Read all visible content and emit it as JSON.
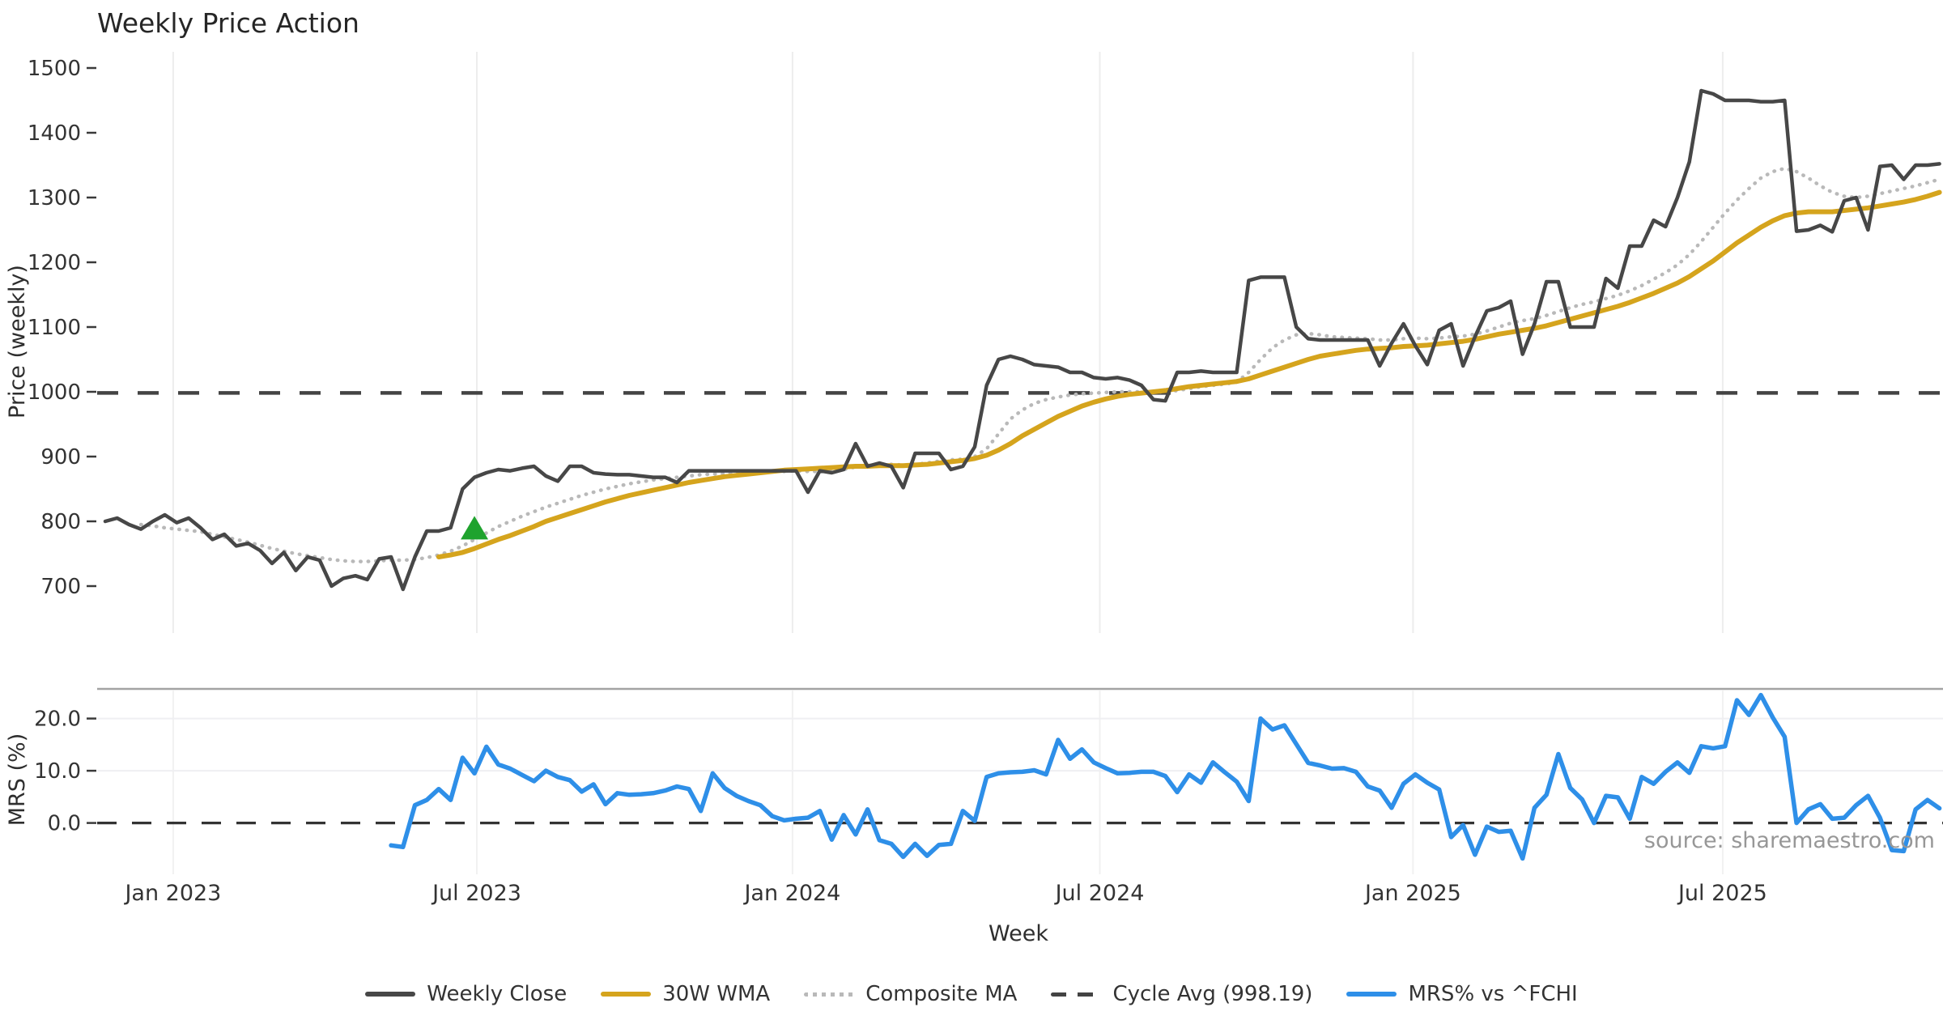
{
  "title": "Weekly Price Action",
  "source": "source: sharemaestro.com",
  "axes": {
    "price_label": "Price (weekly)",
    "mrs_label": "MRS (%)",
    "x_label": "Week",
    "price_ticks": [
      1500,
      1400,
      1300,
      1200,
      1100,
      1000,
      900,
      800,
      700
    ],
    "mrs_ticks": [
      {
        "label": "20.0",
        "value": 20
      },
      {
        "label": "10.0",
        "value": 10
      },
      {
        "label": "0.0",
        "value": 0
      }
    ],
    "x_ticks": [
      {
        "label": "Jan 2023",
        "week": 5.7
      },
      {
        "label": "Jul 2023",
        "week": 31.2
      },
      {
        "label": "Jan 2024",
        "week": 57.7
      },
      {
        "label": "Jul 2024",
        "week": 83.5
      },
      {
        "label": "Jan 2025",
        "week": 109.8
      },
      {
        "label": "Jul 2025",
        "week": 135.8
      }
    ]
  },
  "legend": [
    {
      "label": "Weekly Close",
      "style": "solid",
      "color": "#474747"
    },
    {
      "label": "30W WMA",
      "style": "solid",
      "color": "#d5a41d"
    },
    {
      "label": "Composite MA",
      "style": "dotted",
      "color": "#b9b9b9"
    },
    {
      "label": "Cycle Avg (998.19)",
      "style": "dashed",
      "color": "#434343"
    },
    {
      "label": "MRS% vs ^FCHI",
      "style": "solid",
      "color": "#2e8fe8"
    }
  ],
  "chart_data": [
    {
      "type": "line",
      "panel": "price",
      "ylabel": "Price (weekly)",
      "ylim": [
        700,
        1500
      ],
      "grid": "vertical-months-only",
      "cycle_avg": 998.19,
      "marker": {
        "symbol": "triangle-up",
        "color": "#1fa32e",
        "week": 31,
        "price": 787
      },
      "series": [
        {
          "name": "Weekly Close",
          "color": "#474747",
          "width": 4.5,
          "start_week": 0,
          "values": [
            800,
            805,
            795,
            788,
            800,
            810,
            798,
            805,
            790,
            772,
            780,
            762,
            766,
            755,
            735,
            752,
            724,
            745,
            740,
            700,
            712,
            716,
            710,
            742,
            745,
            695,
            745,
            785,
            785,
            790,
            850,
            868,
            875,
            880,
            878,
            882,
            885,
            870,
            862,
            885,
            885,
            875,
            873,
            872,
            872,
            870,
            868,
            868,
            860,
            878,
            878,
            878,
            878,
            878,
            878,
            878,
            878,
            878,
            878,
            845,
            878,
            875,
            880,
            920,
            885,
            890,
            885,
            852,
            905,
            905,
            905,
            880,
            885,
            915,
            1010,
            1050,
            1055,
            1050,
            1042,
            1040,
            1038,
            1030,
            1030,
            1022,
            1020,
            1022,
            1018,
            1010,
            988,
            986,
            1030,
            1030,
            1032,
            1030,
            1030,
            1030,
            1172,
            1177,
            1177,
            1177,
            1100,
            1082,
            1080,
            1080,
            1080,
            1080,
            1080,
            1040,
            1075,
            1105,
            1071,
            1042,
            1095,
            1105,
            1040,
            1085,
            1125,
            1130,
            1140,
            1058,
            1105,
            1170,
            1170,
            1100,
            1100,
            1100,
            1175,
            1160,
            1225,
            1225,
            1265,
            1255,
            1300,
            1355,
            1465,
            1460,
            1450,
            1450,
            1450,
            1448,
            1448,
            1450,
            1248,
            1250,
            1257,
            1247,
            1295,
            1300,
            1250,
            1348,
            1350,
            1328,
            1350,
            1350,
            1352
          ]
        },
        {
          "name": "30W WMA",
          "color": "#d5a41d",
          "width": 6,
          "start_week": 28,
          "values": [
            745,
            748,
            752,
            758,
            765,
            772,
            778,
            785,
            792,
            800,
            806,
            812,
            818,
            824,
            830,
            835,
            840,
            844,
            848,
            852,
            856,
            860,
            863,
            866,
            869,
            871,
            873,
            875,
            877,
            879,
            880,
            881,
            882,
            883,
            884,
            885,
            885,
            886,
            886,
            886,
            887,
            888,
            890,
            892,
            894,
            897,
            902,
            910,
            920,
            932,
            942,
            952,
            962,
            970,
            978,
            984,
            989,
            993,
            996,
            998,
            1000,
            1002,
            1005,
            1008,
            1010,
            1012,
            1014,
            1016,
            1020,
            1026,
            1032,
            1038,
            1044,
            1050,
            1055,
            1058,
            1061,
            1064,
            1066,
            1067,
            1068,
            1070,
            1071,
            1072,
            1074,
            1076,
            1078,
            1081,
            1085,
            1089,
            1092,
            1095,
            1098,
            1102,
            1107,
            1112,
            1117,
            1122,
            1127,
            1132,
            1138,
            1145,
            1152,
            1160,
            1168,
            1178,
            1190,
            1202,
            1216,
            1230,
            1242,
            1254,
            1264,
            1272,
            1276,
            1278,
            1278,
            1278,
            1280,
            1282,
            1284,
            1287,
            1290,
            1293,
            1297,
            1302,
            1308
          ]
        },
        {
          "name": "Composite MA",
          "color": "#b9b9b9",
          "width": 4.5,
          "dash": "dotted",
          "start_week": 3,
          "values": [
            795,
            793,
            790,
            788,
            786,
            784,
            780,
            776,
            772,
            768,
            763,
            758,
            754,
            750,
            747,
            744,
            741,
            739,
            738,
            738,
            739,
            740,
            740,
            741,
            744,
            748,
            754,
            762,
            772,
            782,
            792,
            800,
            808,
            815,
            822,
            828,
            834,
            840,
            845,
            850,
            854,
            858,
            861,
            864,
            866,
            868,
            870,
            872,
            873,
            874,
            875,
            876,
            876,
            877,
            877,
            878,
            877,
            877,
            878,
            880,
            884,
            886,
            888,
            888,
            887,
            888,
            890,
            893,
            895,
            896,
            900,
            912,
            935,
            958,
            972,
            982,
            988,
            992,
            995,
            997,
            998,
            999,
            1000,
            1000,
            1000,
            1000,
            1000,
            1002,
            1005,
            1008,
            1010,
            1012,
            1015,
            1030,
            1050,
            1068,
            1080,
            1088,
            1090,
            1088,
            1085,
            1084,
            1083,
            1082,
            1080,
            1080,
            1082,
            1083,
            1082,
            1083,
            1085,
            1086,
            1089,
            1094,
            1100,
            1106,
            1110,
            1113,
            1118,
            1124,
            1130,
            1135,
            1139,
            1144,
            1149,
            1156,
            1164,
            1174,
            1184,
            1196,
            1212,
            1232,
            1254,
            1276,
            1296,
            1314,
            1330,
            1340,
            1345,
            1340,
            1330,
            1318,
            1308,
            1302,
            1300,
            1302,
            1306,
            1310,
            1314,
            1318,
            1323,
            1328
          ]
        }
      ]
    },
    {
      "type": "line",
      "panel": "mrs",
      "ylabel": "MRS (%)",
      "ylim": [
        -11,
        26
      ],
      "zero_line": 0,
      "series": [
        {
          "name": "MRS% vs ^FCHI",
          "color": "#2e8fe8",
          "width": 5.5,
          "start_week": 24,
          "values": [
            -4.3,
            -4.6,
            3.4,
            4.4,
            6.5,
            4.4,
            12.5,
            9.5,
            14.6,
            11.2,
            10.4,
            9.2,
            8.0,
            10.0,
            8.8,
            8.2,
            6.0,
            7.4,
            3.6,
            5.7,
            5.4,
            5.5,
            5.7,
            6.2,
            7.0,
            6.5,
            2.3,
            9.5,
            6.7,
            5.2,
            4.2,
            3.4,
            1.3,
            0.5,
            0.8,
            1.0,
            2.3,
            -3.2,
            1.5,
            -2.2,
            2.6,
            -3.3,
            -4.0,
            -6.5,
            -4.0,
            -6.3,
            -4.2,
            -4.0,
            2.3,
            0.4,
            8.8,
            9.5,
            9.7,
            9.8,
            10.1,
            9.3,
            15.9,
            12.3,
            14.1,
            11.6,
            10.5,
            9.5,
            9.6,
            9.8,
            9.8,
            9.0,
            5.9,
            9.3,
            7.7,
            11.6,
            9.7,
            7.9,
            4.2,
            20.0,
            17.9,
            18.7,
            15.1,
            11.5,
            11.0,
            10.4,
            10.5,
            9.8,
            7.0,
            6.2,
            2.9,
            7.5,
            9.3,
            7.7,
            6.4,
            -2.7,
            -0.4,
            -6.1,
            -0.7,
            -1.7,
            -1.5,
            -6.8,
            2.9,
            5.4,
            13.2,
            6.7,
            4.5,
            0.0,
            5.2,
            4.9,
            0.8,
            8.8,
            7.5,
            9.8,
            11.6,
            9.6,
            14.7,
            14.3,
            14.7,
            23.5,
            20.7,
            24.5,
            20.2,
            16.5,
            0.0,
            2.6,
            3.6,
            0.8,
            1.0,
            3.4,
            5.2,
            1.0,
            -5.2,
            -5.4,
            2.6,
            4.4,
            2.8
          ]
        }
      ]
    }
  ]
}
